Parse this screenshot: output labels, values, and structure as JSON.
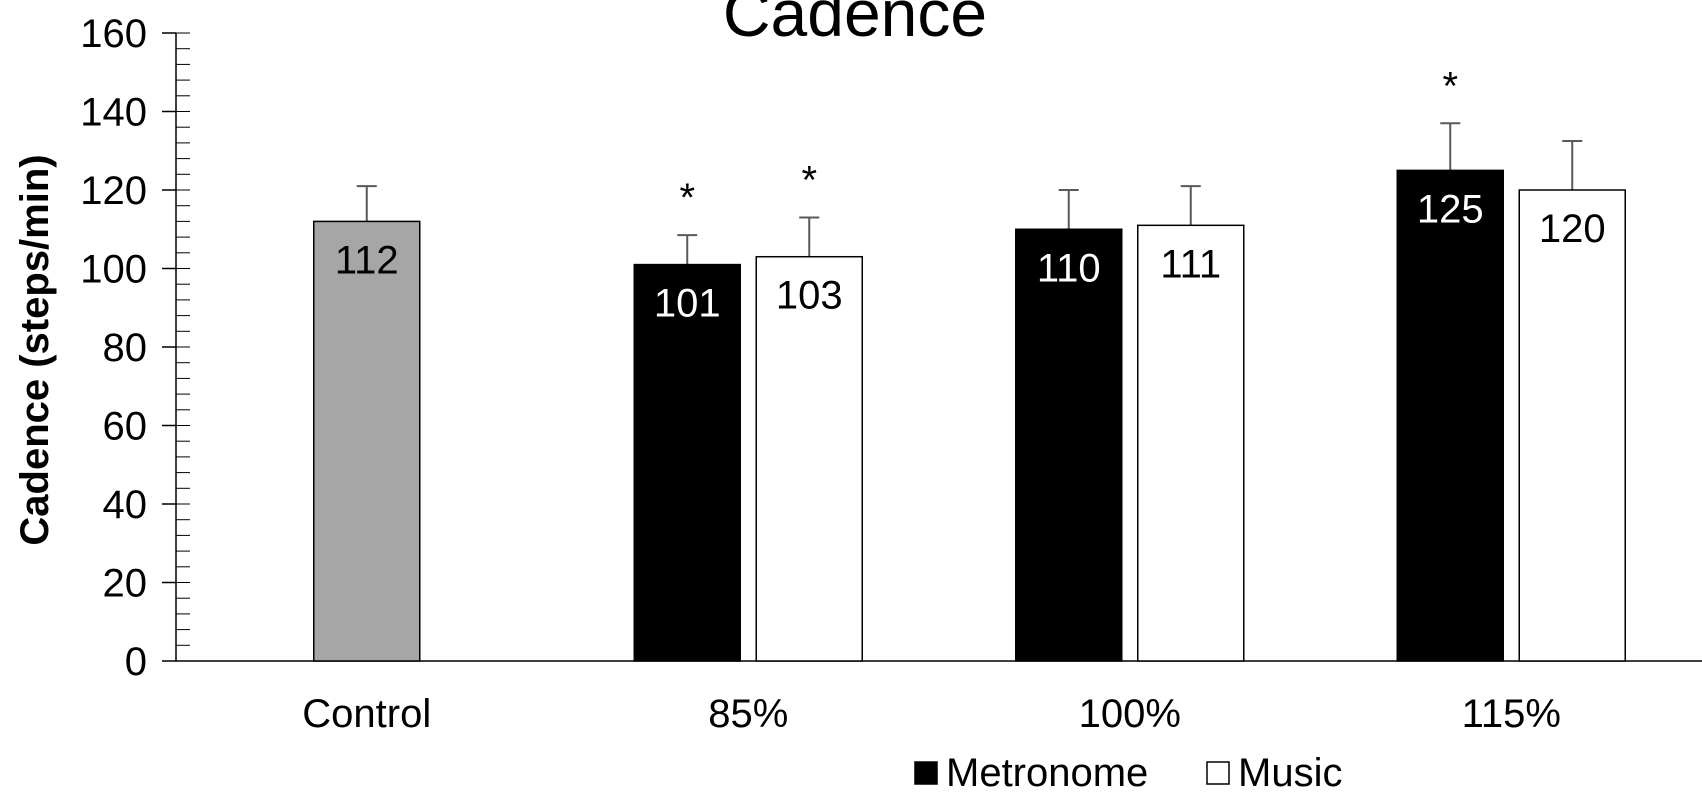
{
  "chart_data": {
    "type": "bar",
    "title": "Cadence",
    "ylabel": "Cadence (steps/min)",
    "xlabel": "",
    "ylim": [
      0,
      160
    ],
    "yticks": [
      0,
      20,
      40,
      60,
      80,
      100,
      120,
      140,
      160
    ],
    "y_minor_step": 4,
    "grid": false,
    "legend_position": "bottom-center",
    "categories": [
      "Control",
      "85%",
      "100%",
      "115%"
    ],
    "series": [
      {
        "name": "Control",
        "in_legend": false,
        "color": "#a6a6a6",
        "label_color": "#000000",
        "values": [
          112,
          null,
          null,
          null
        ],
        "errors": [
          9,
          null,
          null,
          null
        ],
        "significant": [
          false,
          false,
          false,
          false
        ]
      },
      {
        "name": "Metronome",
        "in_legend": true,
        "color": "#000000",
        "label_color": "#ffffff",
        "values": [
          null,
          101,
          110,
          125
        ],
        "errors": [
          null,
          7.5,
          10,
          12
        ],
        "significant": [
          false,
          true,
          false,
          true
        ]
      },
      {
        "name": "Music",
        "in_legend": true,
        "color": "#ffffff",
        "label_color": "#000000",
        "values": [
          null,
          103,
          111,
          120
        ],
        "errors": [
          null,
          10,
          10,
          12.5
        ],
        "significant": [
          false,
          true,
          false,
          false
        ]
      }
    ],
    "significance_marker": "*"
  }
}
